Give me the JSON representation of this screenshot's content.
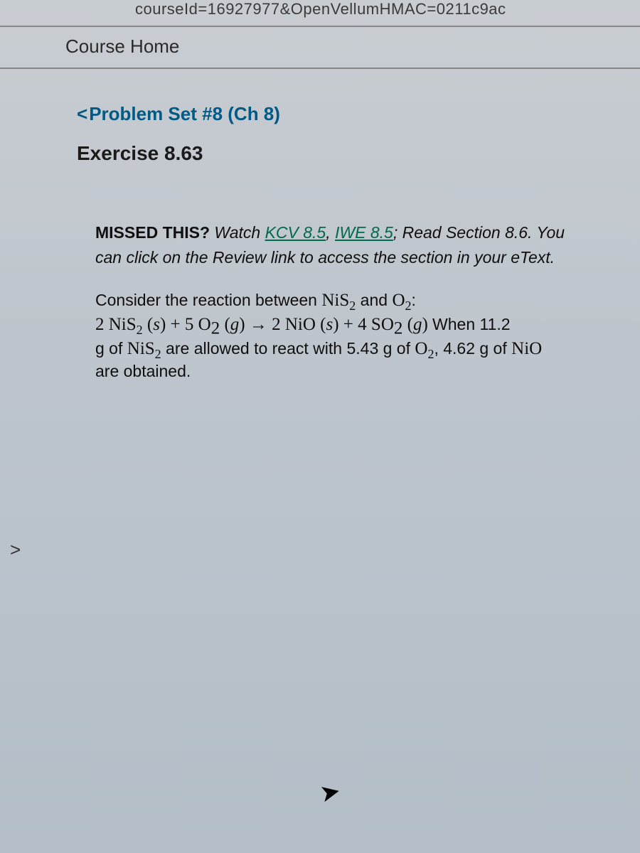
{
  "url_fragment": "courseId=16927977&OpenVellumHMAC=0211c9ac",
  "nav": {
    "course_home": "Course Home"
  },
  "header": {
    "back_chevron": "<",
    "back_label": "Problem Set #8 (Ch 8)",
    "exercise_title": "Exercise 8.63"
  },
  "problem": {
    "missed_prefix": "MISSED THIS?",
    "missed_watch": " Watch ",
    "link_kcv": "KCV 8.5",
    "comma_sep": ", ",
    "link_iwe": "IWE 8.5",
    "missed_read": "; Read Section 8.6. You",
    "review_note": "can click on the Review link to access the section in your eText.",
    "line1_a": "Consider the reaction between ",
    "nis2": "NiS",
    "line1_b": " and ",
    "o2": "O",
    "line1_c": ":",
    "eq_1": "2 NiS",
    "eq_2": " (",
    "state_s": "s",
    "eq_3": ") + 5 O",
    "eq_4": " (",
    "state_g": "g",
    "eq_5": ")  → 2 NiO (",
    "eq_6": ") + 4 SO",
    "eq_7": " (",
    "eq_8": ") ",
    "tail_1": "When 11.2",
    "tail_2": "g of ",
    "tail_3": " are allowed to react with 5.43 g of ",
    "tail_4": ", 4.62 g of ",
    "nio": "NiO",
    "tail_5": "are obtained."
  },
  "pager_chevron": ">",
  "cursor_glyph": "➤"
}
